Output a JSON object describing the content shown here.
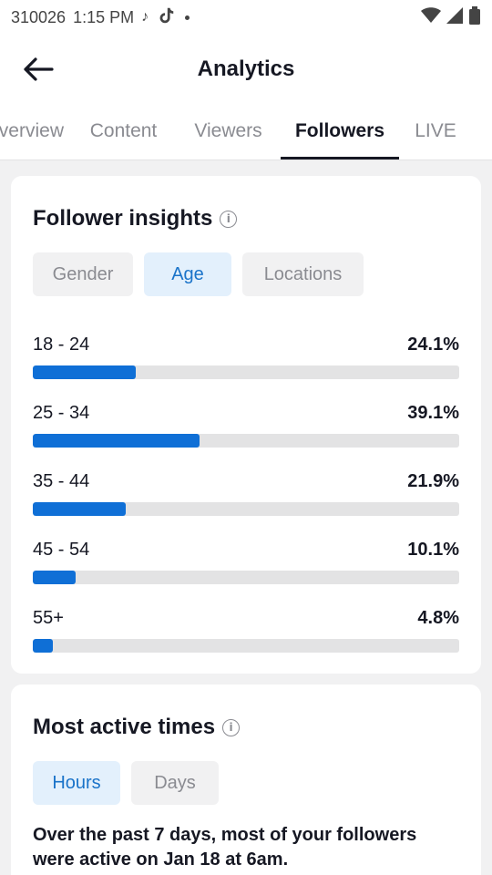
{
  "status_bar": {
    "carrier": "310026",
    "time": "1:15 PM"
  },
  "header": {
    "title": "Analytics"
  },
  "tabs": [
    {
      "label": "Overview",
      "active": false
    },
    {
      "label": "Content",
      "active": false
    },
    {
      "label": "Viewers",
      "active": false
    },
    {
      "label": "Followers",
      "active": true
    },
    {
      "label": "LIVE",
      "active": false
    }
  ],
  "follower_insights": {
    "title": "Follower insights",
    "filters": [
      {
        "label": "Gender",
        "selected": false
      },
      {
        "label": "Age",
        "selected": true
      },
      {
        "label": "Locations",
        "selected": false
      }
    ],
    "age_groups": [
      {
        "label": "18 - 24",
        "value": "24.1%",
        "fraction": 0.241
      },
      {
        "label": "25 - 34",
        "value": "39.1%",
        "fraction": 0.391
      },
      {
        "label": "35 - 44",
        "value": "21.9%",
        "fraction": 0.219
      },
      {
        "label": "45 - 54",
        "value": "10.1%",
        "fraction": 0.101
      },
      {
        "label": "55+",
        "value": "4.8%",
        "fraction": 0.048
      }
    ]
  },
  "most_active_times": {
    "title": "Most active times",
    "filters": [
      {
        "label": "Hours",
        "selected": true
      },
      {
        "label": "Days",
        "selected": false
      }
    ],
    "summary": "Over the past 7 days, most of your followers were active on Jan 18 at 6am."
  },
  "colors": {
    "accent": "#0f6fd6",
    "selected_pill_bg": "#e3f0fc",
    "selected_pill_text": "#1a73c9"
  }
}
